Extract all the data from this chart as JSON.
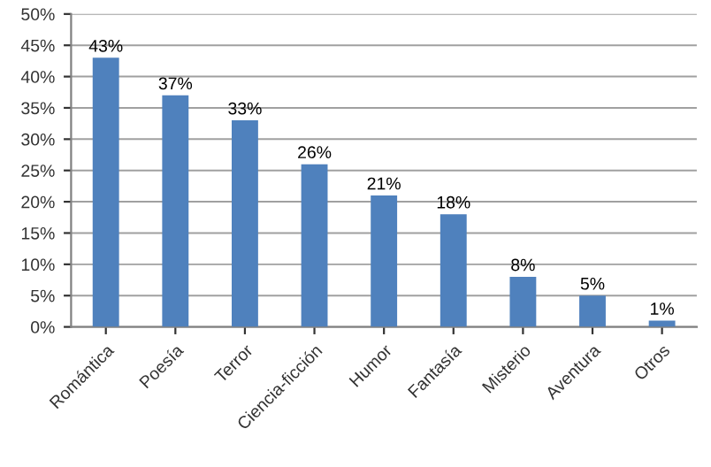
{
  "chart_data": {
    "type": "bar",
    "categories": [
      "Romántica",
      "Poesía",
      "Terror",
      "Ciencia-ficción",
      "Humor",
      "Fantasía",
      "Misterio",
      "Aventura",
      "Otros"
    ],
    "values": [
      43,
      37,
      33,
      26,
      21,
      18,
      8,
      5,
      1
    ],
    "value_labels": [
      "43%",
      "37%",
      "33%",
      "26%",
      "21%",
      "18%",
      "8%",
      "5%",
      "1%"
    ],
    "color": "#4f81bd",
    "ylim": [
      0,
      50
    ],
    "yticks": [
      {
        "value": 0,
        "label": "0%"
      },
      {
        "value": 5,
        "label": "5%"
      },
      {
        "value": 10,
        "label": "10%"
      },
      {
        "value": 15,
        "label": "15%"
      },
      {
        "value": 20,
        "label": "20%"
      },
      {
        "value": 25,
        "label": "25%"
      },
      {
        "value": 30,
        "label": "30%"
      },
      {
        "value": 35,
        "label": "35%"
      },
      {
        "value": 40,
        "label": "40%"
      },
      {
        "value": 45,
        "label": "45%"
      },
      {
        "value": 50,
        "label": "50%"
      }
    ],
    "grid": "y",
    "legend": false
  }
}
